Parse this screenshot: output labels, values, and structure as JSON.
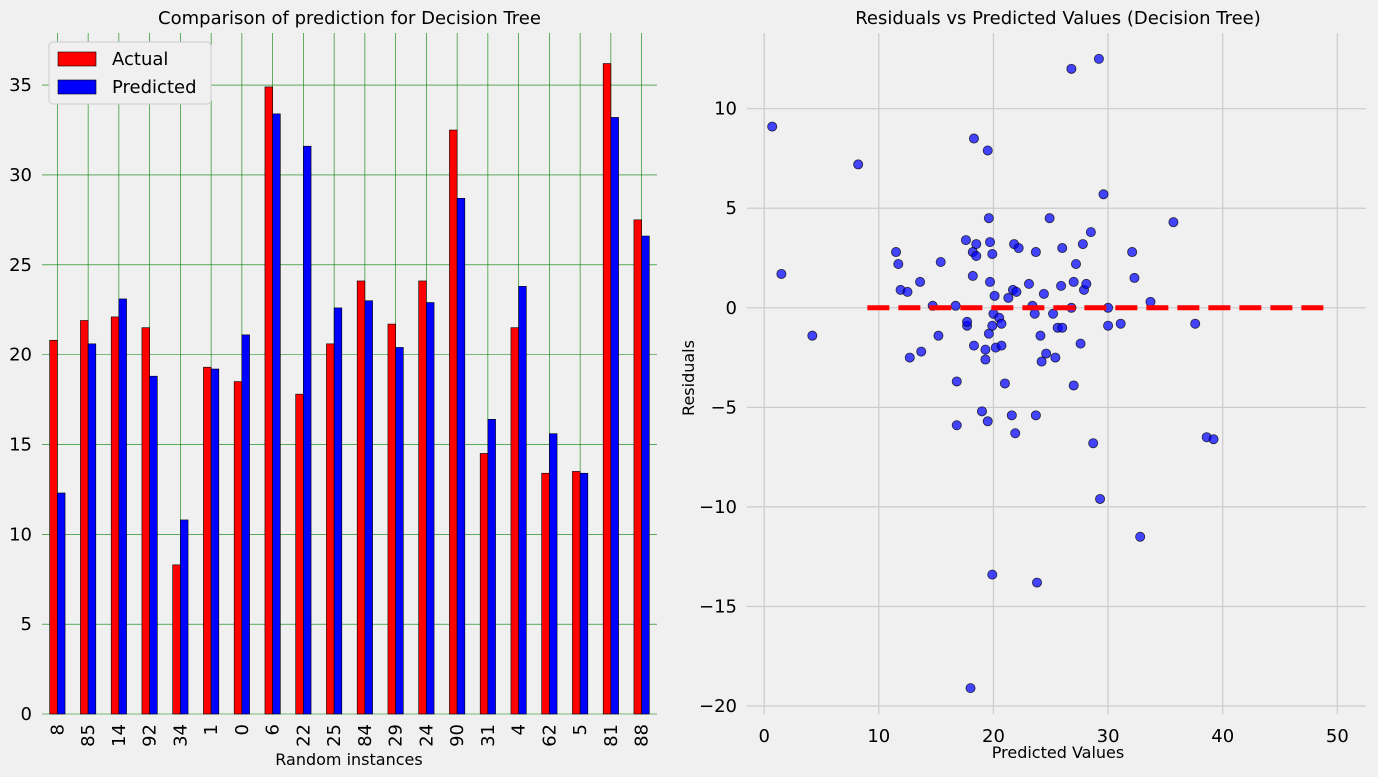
{
  "chart_data": [
    {
      "type": "bar",
      "title": "Comparison of prediction for Decision Tree",
      "xlabel": "Random instances",
      "ylabel": "",
      "categories": [
        "8",
        "85",
        "14",
        "92",
        "34",
        "1",
        "0",
        "6",
        "22",
        "25",
        "84",
        "29",
        "24",
        "90",
        "31",
        "4",
        "62",
        "5",
        "81",
        "88"
      ],
      "series": [
        {
          "name": "Actual",
          "color": "#ff0000",
          "values": [
            20.8,
            21.9,
            22.1,
            21.5,
            8.3,
            19.3,
            18.5,
            34.9,
            17.8,
            20.6,
            24.1,
            21.7,
            24.1,
            32.5,
            14.5,
            21.5,
            13.4,
            13.5,
            36.2,
            27.5
          ]
        },
        {
          "name": "Predicted",
          "color": "#0000ff",
          "values": [
            12.3,
            20.6,
            23.1,
            18.8,
            10.8,
            19.2,
            21.1,
            33.4,
            31.6,
            22.6,
            23.0,
            20.4,
            22.9,
            28.7,
            16.4,
            23.8,
            15.6,
            13.4,
            33.2,
            26.6
          ]
        }
      ],
      "ylim": [
        0,
        37.9
      ],
      "yticks": [
        0,
        5,
        10,
        15,
        20,
        25,
        30,
        35
      ],
      "grid": true,
      "grid_color": "#008000",
      "legend": "top-left"
    },
    {
      "type": "scatter",
      "title": "Residuals vs Predicted Values (Decision Tree)",
      "xlabel": "Predicted Values",
      "ylabel": "Residuals",
      "xlim": [
        -1.5,
        52.5
      ],
      "ylim": [
        -20.4,
        13.8
      ],
      "xticks": [
        0,
        10,
        20,
        30,
        40,
        50
      ],
      "yticks": [
        -20,
        -15,
        -10,
        -5,
        0,
        5,
        10
      ],
      "grid": true,
      "point_color": "#0000ff",
      "reference_line": {
        "y": 0,
        "x_from": 9,
        "x_to": 49,
        "color": "#ff0000",
        "style": "dashed"
      },
      "points": [
        [
          0.7,
          9.1
        ],
        [
          1.5,
          1.7
        ],
        [
          4.2,
          -1.4
        ],
        [
          8.2,
          7.2
        ],
        [
          11.5,
          2.8
        ],
        [
          11.7,
          2.2
        ],
        [
          11.9,
          0.9
        ],
        [
          12.5,
          0.8
        ],
        [
          12.7,
          -2.5
        ],
        [
          13.6,
          1.3
        ],
        [
          13.7,
          -2.2
        ],
        [
          14.7,
          0.1
        ],
        [
          15.2,
          -1.4
        ],
        [
          15.4,
          2.3
        ],
        [
          16.7,
          0.1
        ],
        [
          16.8,
          -3.7
        ],
        [
          16.8,
          -5.9
        ],
        [
          17.6,
          3.4
        ],
        [
          17.7,
          -0.9
        ],
        [
          17.7,
          -0.7
        ],
        [
          18.2,
          2.8
        ],
        [
          18.2,
          1.6
        ],
        [
          18.3,
          8.5
        ],
        [
          18.3,
          -1.9
        ],
        [
          18.5,
          2.6
        ],
        [
          18.5,
          3.2
        ],
        [
          18.0,
          -19.1
        ],
        [
          19.0,
          -5.2
        ],
        [
          19.3,
          -2.1
        ],
        [
          19.3,
          -2.6
        ],
        [
          19.5,
          7.9
        ],
        [
          19.5,
          -5.7
        ],
        [
          19.6,
          4.5
        ],
        [
          19.6,
          -1.3
        ],
        [
          19.7,
          3.3
        ],
        [
          19.7,
          1.3
        ],
        [
          19.9,
          2.7
        ],
        [
          19.9,
          -0.9
        ],
        [
          19.9,
          -13.4
        ],
        [
          20.0,
          -0.3
        ],
        [
          20.1,
          0.6
        ],
        [
          20.2,
          -2.0
        ],
        [
          20.5,
          -0.5
        ],
        [
          20.7,
          -1.9
        ],
        [
          20.7,
          -0.8
        ],
        [
          21.0,
          -3.8
        ],
        [
          21.3,
          0.5
        ],
        [
          21.6,
          -5.4
        ],
        [
          21.7,
          0.9
        ],
        [
          21.8,
          3.2
        ],
        [
          21.9,
          -6.3
        ],
        [
          22.0,
          0.8
        ],
        [
          22.2,
          3.0
        ],
        [
          23.1,
          1.2
        ],
        [
          23.4,
          0.1
        ],
        [
          23.6,
          -0.3
        ],
        [
          23.7,
          -5.4
        ],
        [
          23.7,
          2.8
        ],
        [
          23.8,
          -13.8
        ],
        [
          24.1,
          -1.4
        ],
        [
          24.2,
          -2.7
        ],
        [
          24.4,
          0.7
        ],
        [
          24.6,
          -2.3
        ],
        [
          24.9,
          4.5
        ],
        [
          25.2,
          -0.3
        ],
        [
          25.4,
          -2.5
        ],
        [
          25.6,
          -1.0
        ],
        [
          25.9,
          1.1
        ],
        [
          26.0,
          3.0
        ],
        [
          26.0,
          -1.0
        ],
        [
          26.8,
          12.0
        ],
        [
          26.8,
          0.0
        ],
        [
          27.0,
          1.3
        ],
        [
          27.0,
          -3.9
        ],
        [
          27.2,
          2.2
        ],
        [
          27.6,
          -1.8
        ],
        [
          27.8,
          3.2
        ],
        [
          27.9,
          0.9
        ],
        [
          28.1,
          1.2
        ],
        [
          28.5,
          3.8
        ],
        [
          28.7,
          -6.8
        ],
        [
          29.2,
          12.5
        ],
        [
          29.3,
          -9.6
        ],
        [
          29.6,
          5.7
        ],
        [
          30.0,
          0.0
        ],
        [
          30.0,
          -0.9
        ],
        [
          31.1,
          -0.8
        ],
        [
          32.1,
          2.8
        ],
        [
          32.3,
          1.5
        ],
        [
          32.8,
          -11.5
        ],
        [
          33.7,
          0.3
        ],
        [
          35.7,
          4.3
        ],
        [
          37.6,
          -0.8
        ],
        [
          38.6,
          -6.5
        ],
        [
          39.2,
          -6.6
        ]
      ]
    }
  ]
}
